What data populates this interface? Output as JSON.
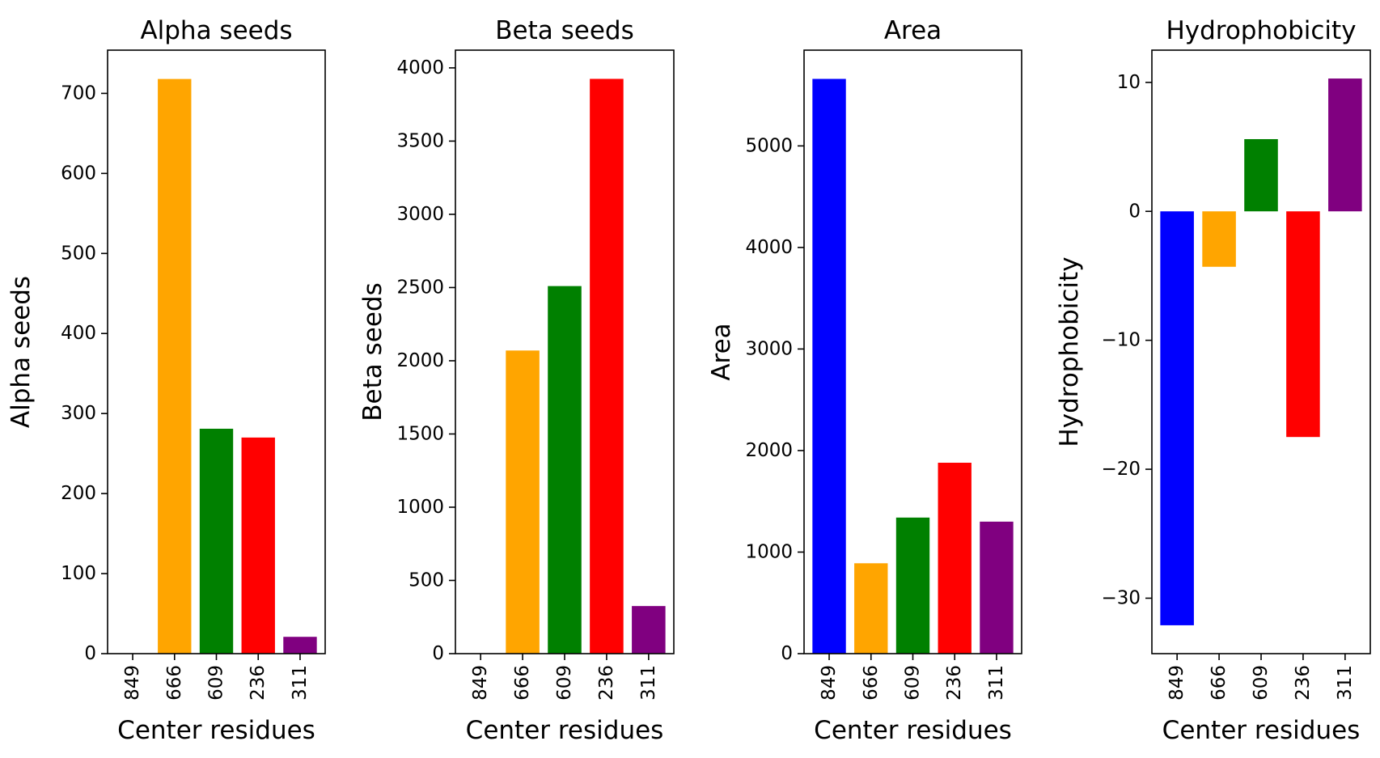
{
  "chart_data": [
    {
      "type": "bar",
      "title": "Alpha seeds",
      "xlabel": "Center residues",
      "ylabel": "Alpha seeds",
      "categories": [
        "849",
        "666",
        "609",
        "236",
        "311"
      ],
      "values": [
        0,
        718,
        281,
        270,
        21
      ],
      "colors": [
        "#0000ff",
        "#ffa500",
        "#008000",
        "#ff0000",
        "#800080"
      ],
      "yticks": [
        0,
        100,
        200,
        300,
        400,
        500,
        600,
        700
      ],
      "ylim": [
        0,
        754
      ]
    },
    {
      "type": "bar",
      "title": "Beta seeds",
      "xlabel": "Center residues",
      "ylabel": "Beta seeds",
      "categories": [
        "849",
        "666",
        "609",
        "236",
        "311"
      ],
      "values": [
        0,
        2070,
        2510,
        3925,
        325
      ],
      "colors": [
        "#0000ff",
        "#ffa500",
        "#008000",
        "#ff0000",
        "#800080"
      ],
      "yticks": [
        0,
        500,
        1000,
        1500,
        2000,
        2500,
        3000,
        3500,
        4000
      ],
      "ylim": [
        0,
        4121
      ]
    },
    {
      "type": "bar",
      "title": "Area",
      "xlabel": "Center residues",
      "ylabel": "Area",
      "categories": [
        "849",
        "666",
        "609",
        "236",
        "311"
      ],
      "values": [
        5660,
        890,
        1340,
        1880,
        1300
      ],
      "colors": [
        "#0000ff",
        "#ffa500",
        "#008000",
        "#ff0000",
        "#800080"
      ],
      "yticks": [
        0,
        1000,
        2000,
        3000,
        4000,
        5000
      ],
      "ylim": [
        0,
        5943
      ]
    },
    {
      "type": "bar",
      "title": "Hydrophobicity",
      "xlabel": "Center residues",
      "ylabel": "Hydrophobicity",
      "categories": [
        "849",
        "666",
        "609",
        "236",
        "311"
      ],
      "values": [
        -32.1,
        -4.3,
        5.6,
        -17.5,
        10.3
      ],
      "colors": [
        "#0000ff",
        "#ffa500",
        "#008000",
        "#ff0000",
        "#800080"
      ],
      "yticks": [
        -30,
        -20,
        -10,
        0,
        10
      ],
      "ytick_labels": [
        "−30",
        "−20",
        "−10",
        "0",
        "10"
      ],
      "ylim": [
        -34.3,
        12.5
      ]
    }
  ]
}
